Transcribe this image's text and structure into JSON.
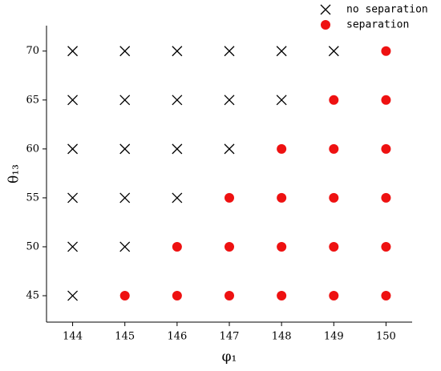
{
  "chart_data": {
    "type": "scatter",
    "x_label": "φ₁",
    "y_label": "θ₁₃",
    "xlim": [
      143.5,
      150.5
    ],
    "xticks": [
      144,
      145,
      146,
      147,
      148,
      149,
      150
    ],
    "ylim": [
      42.3,
      72.6
    ],
    "yticks": [
      45,
      50,
      55,
      60,
      65,
      70
    ],
    "legend": "top-right",
    "series": [
      {
        "name": "no separation",
        "color": "#000000",
        "marker": "x",
        "x": [
          144,
          145,
          146,
          147,
          148,
          149,
          144,
          145,
          146,
          147,
          148,
          144,
          145,
          146,
          147,
          144,
          145,
          146,
          144,
          145,
          144
        ],
        "values": [
          70,
          70,
          70,
          70,
          70,
          70,
          65,
          65,
          65,
          65,
          65,
          60,
          60,
          60,
          60,
          55,
          55,
          55,
          50,
          50,
          45
        ]
      },
      {
        "name": "separation",
        "color": "#ee1111",
        "marker": "o",
        "x": [
          150,
          149,
          150,
          148,
          149,
          150,
          147,
          148,
          149,
          150,
          146,
          147,
          148,
          149,
          150,
          145,
          146,
          147,
          148,
          149,
          150
        ],
        "values": [
          70,
          65,
          65,
          60,
          60,
          60,
          55,
          55,
          55,
          55,
          50,
          50,
          50,
          50,
          50,
          45,
          45,
          45,
          45,
          45,
          45
        ]
      }
    ]
  }
}
